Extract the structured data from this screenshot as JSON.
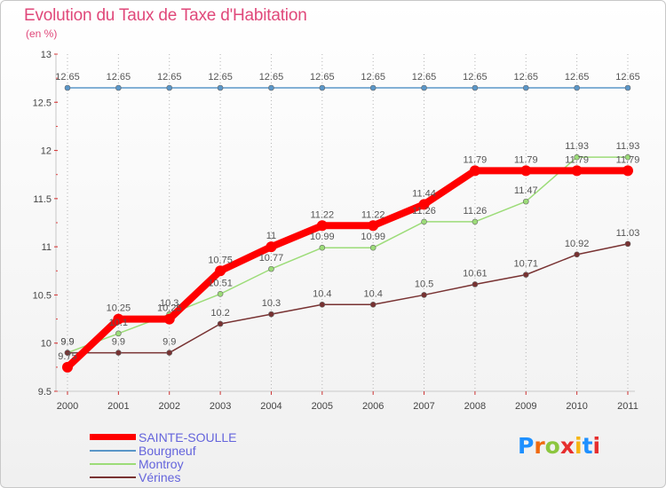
{
  "header": {
    "title": "Evolution du Taux de Taxe d'Habitation",
    "subtitle": "(en %)"
  },
  "logo": {
    "text": "Proxiti",
    "colors": [
      "#1e90ff",
      "#f06a0f",
      "#8cc63f",
      "#e62e2e",
      "#f6b511",
      "#1e90ff",
      "#e62e2e"
    ]
  },
  "chart_data": {
    "type": "line",
    "title": "Evolution du Taux de Taxe d'Habitation",
    "subtitle": "(en %)",
    "x": [
      "2000",
      "2001",
      "2002",
      "2003",
      "2004",
      "2005",
      "2006",
      "2007",
      "2008",
      "2009",
      "2010",
      "2011"
    ],
    "ylim": [
      9.5,
      13
    ],
    "yticks": [
      "9.5",
      "10",
      "10.5",
      "11",
      "11.5",
      "12",
      "12.5",
      "13"
    ],
    "grid": "vertical-dotted",
    "legend_position": "bottom-left",
    "series": [
      {
        "name": "SAINTE-SOULLE",
        "color": "#ff0000",
        "width": 8,
        "marker": 6,
        "values": [
          9.75,
          10.25,
          10.25,
          10.75,
          11,
          11.22,
          11.22,
          11.44,
          11.79,
          11.79,
          11.79,
          11.79
        ],
        "labels": [
          "9.75",
          "10.25",
          "10.25",
          "10.75",
          "11",
          "11.22",
          "11.22",
          "11.44",
          "11.79",
          "11.79",
          "11.79",
          "11.79"
        ]
      },
      {
        "name": "Bourgneuf",
        "color": "#5a96c8",
        "width": 1.5,
        "marker": 3,
        "values": [
          12.65,
          12.65,
          12.65,
          12.65,
          12.65,
          12.65,
          12.65,
          12.65,
          12.65,
          12.65,
          12.65,
          12.65
        ],
        "labels": [
          "12.65",
          "12.65",
          "12.65",
          "12.65",
          "12.65",
          "12.65",
          "12.65",
          "12.65",
          "12.65",
          "12.65",
          "12.65",
          "12.65"
        ]
      },
      {
        "name": "Montroy",
        "color": "#9cdc78",
        "width": 1.5,
        "marker": 3,
        "values": [
          9.9,
          10.1,
          10.3,
          10.51,
          10.77,
          10.99,
          10.99,
          11.26,
          11.26,
          11.47,
          11.93,
          11.93
        ],
        "labels": [
          "9.9",
          "10.1",
          "10.3",
          "10.51",
          "10.77",
          "10.99",
          "10.99",
          "11.26",
          "11.26",
          "11.47",
          "11.93",
          "11.93"
        ]
      },
      {
        "name": "Vérines",
        "color": "#783232",
        "width": 1.5,
        "marker": 3,
        "values": [
          9.9,
          9.9,
          9.9,
          10.2,
          10.3,
          10.4,
          10.4,
          10.5,
          10.61,
          10.71,
          10.92,
          11.03
        ],
        "labels": [
          "9.9",
          "9.9",
          "9.9",
          "10.2",
          "10.3",
          "10.4",
          "10.4",
          "10.5",
          "10.61",
          "10.71",
          "10.92",
          "11.03"
        ]
      }
    ]
  }
}
